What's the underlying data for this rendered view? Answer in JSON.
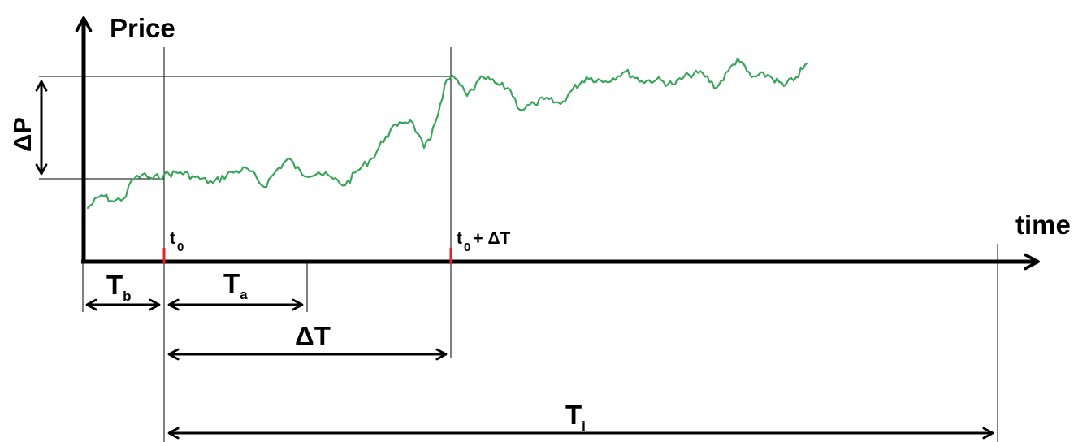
{
  "axes": {
    "y_label": "Price",
    "x_label": "time"
  },
  "labels": {
    "delta_p": "ΔP",
    "t0_base": "t",
    "t0_sub": "0",
    "t0dt_base": "t",
    "t0dt_sub": "0",
    "t0dt_suffix": "+ ΔT",
    "tb_base": "T",
    "tb_sub": "b",
    "ta_base": "T",
    "ta_sub": "a",
    "delta_t": "ΔT",
    "ti_base": "T",
    "ti_sub": "i"
  },
  "colors": {
    "price_line": "#3aa55a",
    "marker": "#e8202a",
    "axis": "#000000"
  }
}
